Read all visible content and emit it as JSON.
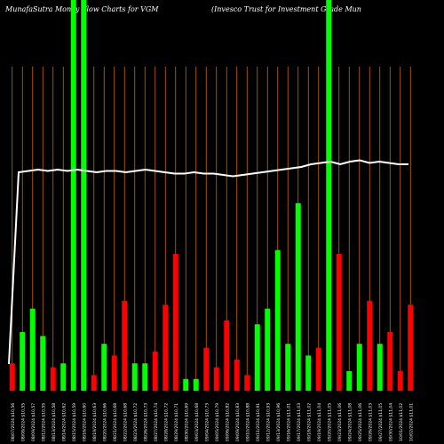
{
  "chart_data": {
    "type": "bar",
    "title": "MunafaSutra  Money Flow  Charts for VGM",
    "subtitle": "(Invesco  Trust for Investment Grade  Mun",
    "colors": {
      "background": "#000000",
      "up": "#00ff00",
      "down": "#ff0000",
      "line": "#ffffff",
      "grid": "#cc6600"
    },
    "ylim": [
      0,
      100
    ],
    "bars": [
      {
        "label": "08/07/2024 $10,56",
        "value": 7,
        "color": "down"
      },
      {
        "label": "08/08/2024 $10,55",
        "value": 15,
        "color": "up"
      },
      {
        "label": "08/09/2024 $10,57",
        "value": 21,
        "color": "up"
      },
      {
        "label": "08/12/2024 $10,55",
        "value": 14,
        "color": "up"
      },
      {
        "label": "08/13/2024 $10,58",
        "value": 6,
        "color": "down"
      },
      {
        "label": "08/14/2024 $10,62",
        "value": 7,
        "color": "up"
      },
      {
        "label": "08/15/2024 $10,59",
        "value": 100,
        "color": "up"
      },
      {
        "label": "08/16/2024 $10,60",
        "value": 100,
        "color": "up"
      },
      {
        "label": "08/19/2024 $10,63",
        "value": 4,
        "color": "down"
      },
      {
        "label": "08/20/2024 $10,66",
        "value": 12,
        "color": "up"
      },
      {
        "label": "08/21/2024 $10,68",
        "value": 9,
        "color": "down"
      },
      {
        "label": "08/22/2024 $10,68",
        "value": 23,
        "color": "down"
      },
      {
        "label": "08/23/2024 $10,72",
        "value": 7,
        "color": "up"
      },
      {
        "label": "08/26/2024 $10,73",
        "value": 7,
        "color": "up"
      },
      {
        "label": "08/27/2024 $10,74",
        "value": 10,
        "color": "down"
      },
      {
        "label": "08/28/2024 $10,72",
        "value": 22,
        "color": "down"
      },
      {
        "label": "08/29/2024 $10,71",
        "value": 35,
        "color": "down"
      },
      {
        "label": "08/30/2024 $10,69",
        "value": 3,
        "color": "up"
      },
      {
        "label": "09/03/2024 $10,68",
        "value": 3,
        "color": "up"
      },
      {
        "label": "09/04/2024 $10,73",
        "value": 11,
        "color": "down"
      },
      {
        "label": "09/05/2024 $10,79",
        "value": 6,
        "color": "down"
      },
      {
        "label": "09/06/2024 $10,82",
        "value": 18,
        "color": "down"
      },
      {
        "label": "09/09/2024 $10,83",
        "value": 8,
        "color": "down"
      },
      {
        "label": "09/10/2024 $10,88",
        "value": 4,
        "color": "down"
      },
      {
        "label": "09/11/2024 $10,91",
        "value": 17,
        "color": "up"
      },
      {
        "label": "09/12/2024 $10,93",
        "value": 21,
        "color": "up"
      },
      {
        "label": "09/13/2024 $10,96",
        "value": 36,
        "color": "up"
      },
      {
        "label": "09/16/2024 $11,01",
        "value": 12,
        "color": "up"
      },
      {
        "label": "09/17/2024 $11,03",
        "value": 48,
        "color": "up"
      },
      {
        "label": "09/18/2024 $11,02",
        "value": 9,
        "color": "up"
      },
      {
        "label": "09/19/2024 $11,04",
        "value": 11,
        "color": "down"
      },
      {
        "label": "09/20/2024 $11,05",
        "value": 100,
        "color": "up"
      },
      {
        "label": "09/23/2024 $11,06",
        "value": 35,
        "color": "down"
      },
      {
        "label": "09/24/2024 $11,08",
        "value": 5,
        "color": "up"
      },
      {
        "label": "09/25/2024 $11,06",
        "value": 12,
        "color": "up"
      },
      {
        "label": "09/26/2024 $11,03",
        "value": 23,
        "color": "down"
      },
      {
        "label": "09/27/2024 $11,05",
        "value": 12,
        "color": "up"
      },
      {
        "label": "09/30/2024 $11,04",
        "value": 15,
        "color": "down"
      },
      {
        "label": "10/01/2024 $11,02",
        "value": 5,
        "color": "down"
      },
      {
        "label": "10/02/2024 $11,01",
        "value": 22,
        "color": "down"
      }
    ],
    "price_line": [
      10,
      82,
      82.5,
      83,
      82.5,
      83,
      82.5,
      83,
      82.5,
      82,
      82.5,
      82.5,
      82,
      82.5,
      83,
      82.5,
      82,
      81.5,
      81.5,
      82,
      81.5,
      81.5,
      81,
      80.5,
      81,
      81.5,
      82,
      82.5,
      83,
      83.5,
      84,
      85,
      85.5,
      86,
      85,
      86,
      86.5,
      85.5,
      86,
      85.5,
      85,
      85
    ]
  }
}
